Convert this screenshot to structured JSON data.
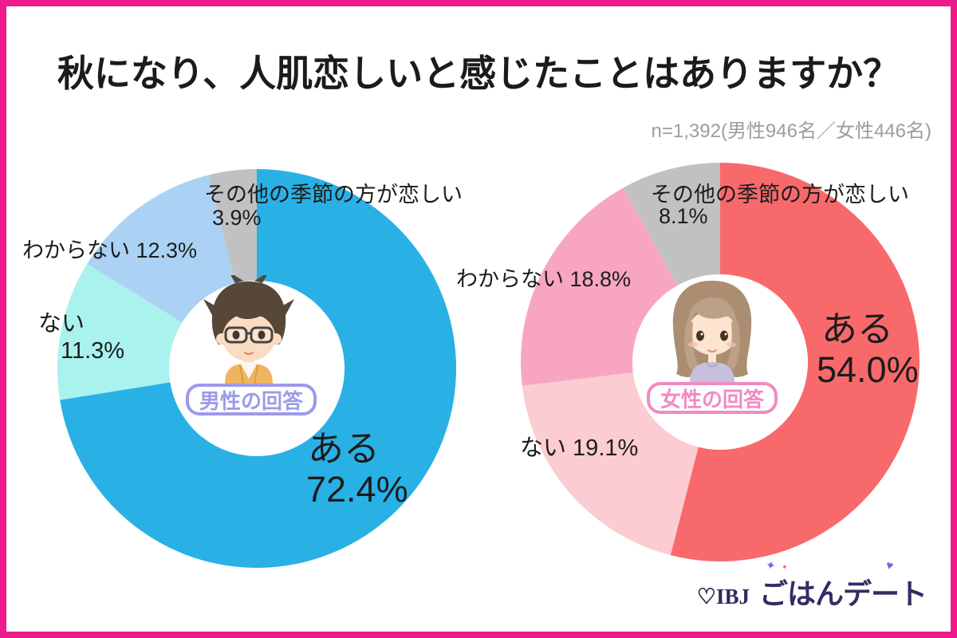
{
  "frame": {
    "border_color": "#ed1b8c",
    "background": "#ffffff"
  },
  "header": {
    "title": "秋になり、人肌恋しいと感じたことはありますか？",
    "sample_note": "n=1,392(男性946名／女性446名)"
  },
  "male_chart": {
    "center_label": "男性の回答",
    "accent_color": "#9b9be9",
    "labels": {
      "other_name": "その他の季節の方が恋しい",
      "other_pct": "3.9%",
      "unknown": "わからない 12.3%",
      "no_name": "ない",
      "no_pct": "11.3%",
      "yes_name": "ある",
      "yes_pct": "72.4%"
    }
  },
  "female_chart": {
    "center_label": "女性の回答",
    "accent_color": "#f08ac3",
    "labels": {
      "other_name": "その他の季節の方が恋しい",
      "other_pct": "8.1%",
      "unknown": "わからない  18.8%",
      "no": "ない 19.1%",
      "yes_name": "ある",
      "yes_pct": "54.0%"
    }
  },
  "footer": {
    "logo_ibj": "♡IBJ",
    "logo_brand": "ごはんデート"
  },
  "chart_data": [
    {
      "type": "pie",
      "subtype": "donut",
      "title": "男性の回答",
      "categories": [
        "ある",
        "ない",
        "わからない",
        "その他の季節の方が恋しい"
      ],
      "values": [
        72.4,
        11.3,
        12.3,
        3.9
      ],
      "colors": [
        "#29b1e6",
        "#a9f2ee",
        "#abd2f4",
        "#c1c1c3"
      ],
      "start_angle": "top",
      "direction": "clockwise",
      "inner_radius_ratio": 0.44,
      "sample_size": 946
    },
    {
      "type": "pie",
      "subtype": "donut",
      "title": "女性の回答",
      "categories": [
        "ある",
        "ない",
        "わからない",
        "その他の季節の方が恋しい"
      ],
      "values": [
        54.0,
        19.1,
        18.8,
        8.1
      ],
      "colors": [
        "#f8696b",
        "#fbccd2",
        "#f8a5c2",
        "#c1c1c3"
      ],
      "start_angle": "top",
      "direction": "clockwise",
      "inner_radius_ratio": 0.44,
      "sample_size": 446
    }
  ]
}
